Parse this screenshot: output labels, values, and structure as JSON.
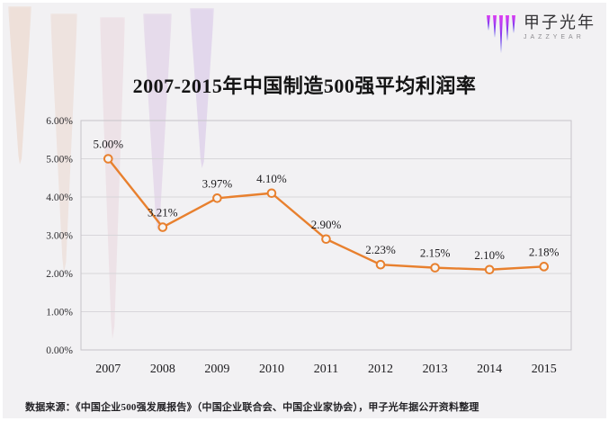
{
  "logo": {
    "brand": "甲子光年",
    "sub": "JAZZYEAR",
    "gradient_top": "#df3ef2",
    "gradient_bottom": "#3c41ea"
  },
  "title": "2007-2015年中国制造500强平均利润率",
  "source_note": "数据来源：《中国企业500强发展报告》（中国企业联合会、中国企业家协会），甲子光年据公开资料整理",
  "chart_data": {
    "type": "line",
    "title": "2007-2015年中国制造500强平均利润率",
    "categories": [
      "2007",
      "2008",
      "2009",
      "2010",
      "2011",
      "2012",
      "2013",
      "2014",
      "2015"
    ],
    "values": [
      5.0,
      3.21,
      3.97,
      4.1,
      2.9,
      2.23,
      2.15,
      2.1,
      2.18
    ],
    "data_labels": [
      "5.00%",
      "3.21%",
      "3.97%",
      "4.10%",
      "2.90%",
      "2.23%",
      "2.15%",
      "2.10%",
      "2.18%"
    ],
    "unit": "%",
    "xlabel": "",
    "ylabel": "",
    "ylim": [
      0,
      6
    ],
    "y_tick_step": 1,
    "y_ticks": [
      "0.00%",
      "1.00%",
      "2.00%",
      "3.00%",
      "4.00%",
      "5.00%",
      "6.00%"
    ],
    "grid": true,
    "legend": "none",
    "line_color": "#e8802e",
    "marker": "open-circle",
    "marker_fill": "#f6f4f2",
    "grid_color": "#d8d6da",
    "border_color": "#c6c4c8"
  },
  "background": {
    "color": "#f2f1f3",
    "accent_strokes": [
      "#e9cfc0",
      "#ebd3c9",
      "#e8ccd6",
      "#ddc9e3",
      "#d8c6e8"
    ]
  }
}
